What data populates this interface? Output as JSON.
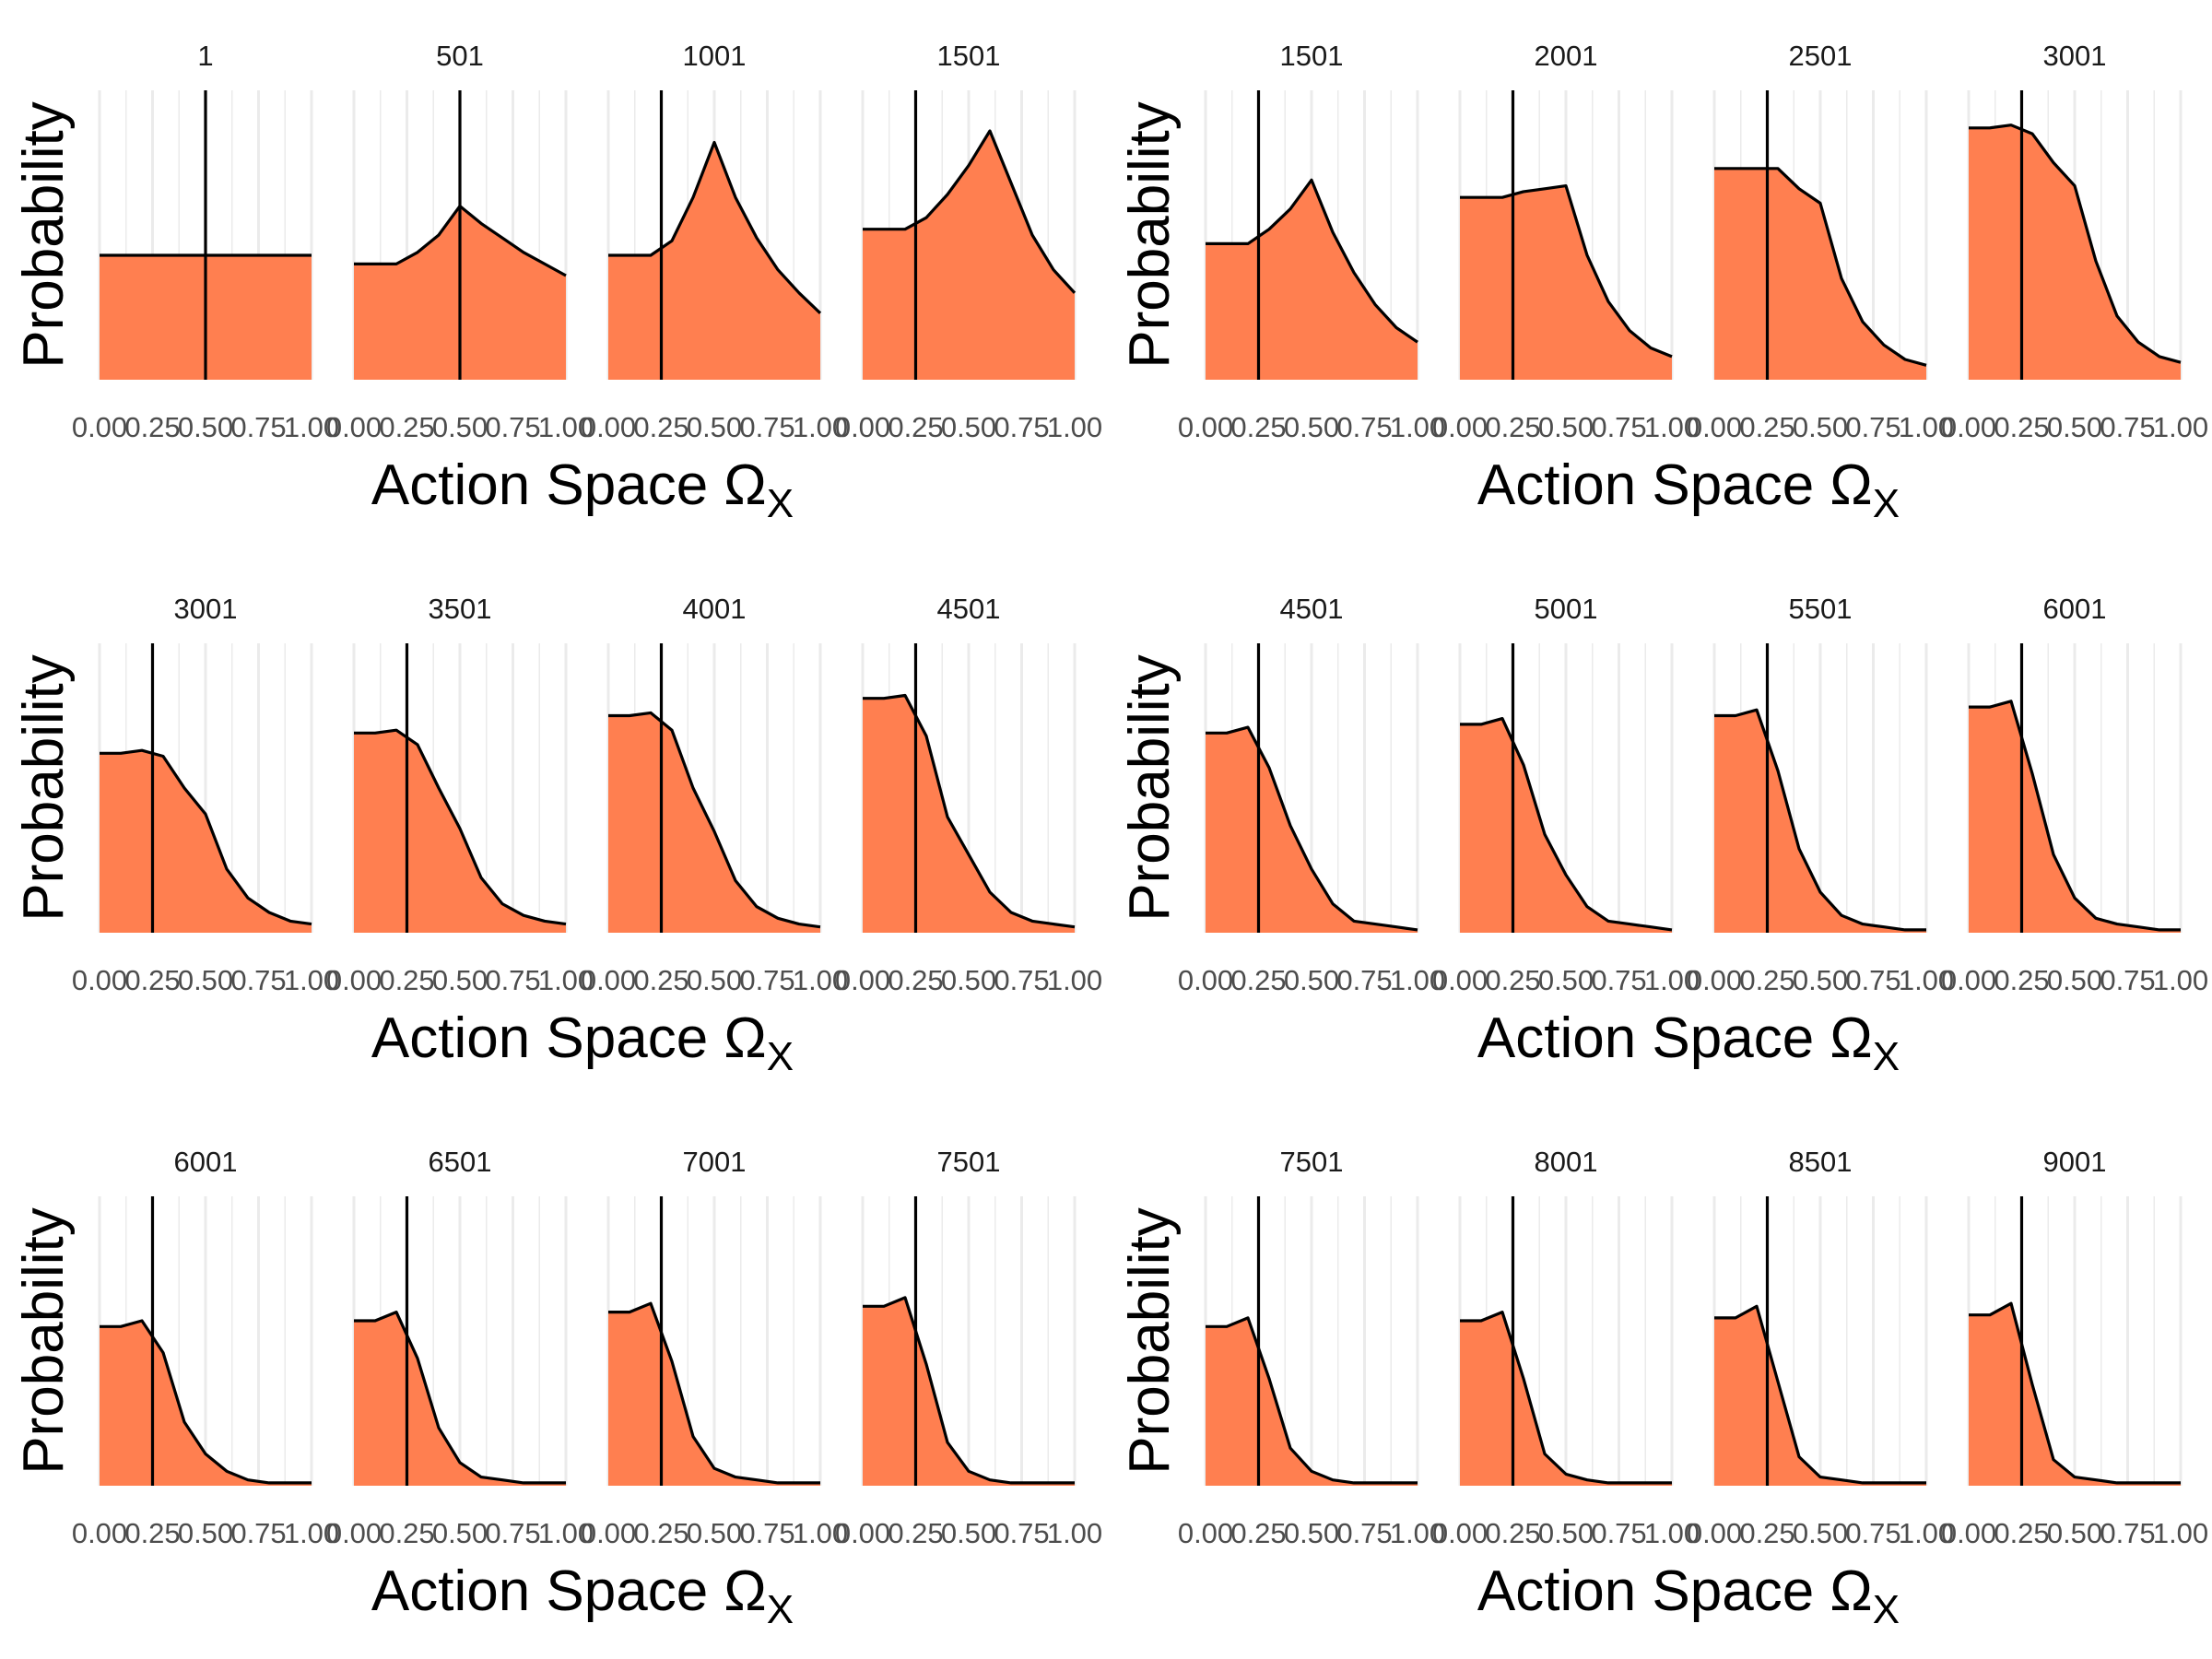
{
  "figure": {
    "fill_color": "#FF7F50",
    "line_color": "#000000",
    "grid_color": "#EBEBEB",
    "tick_label_color": "#4D4D4D",
    "ylabel": "Probability",
    "xlabel_main": "Action Space Ω",
    "xlabel_sub": "X",
    "x_tick_labels": [
      "0.00",
      "0.25",
      "0.50",
      "0.75",
      "1.00"
    ],
    "y_axis_ticks_shown": false,
    "grid": "vertical only"
  },
  "chart_data": [
    {
      "type": "area",
      "x": [
        0,
        0.1,
        0.2,
        0.3,
        0.4,
        0.5,
        0.6,
        0.7,
        0.8,
        0.9,
        1.0
      ],
      "xlim": [
        0,
        1
      ],
      "ylim": [
        0,
        1
      ],
      "facets": [
        {
          "title": "1",
          "vline": 0.5,
          "values": [
            0.43,
            0.43,
            0.43,
            0.43,
            0.43,
            0.43,
            0.43,
            0.43,
            0.43,
            0.43,
            0.43
          ]
        },
        {
          "title": "501",
          "vline": 0.5,
          "values": [
            0.4,
            0.4,
            0.4,
            0.44,
            0.5,
            0.6,
            0.54,
            0.49,
            0.44,
            0.4,
            0.36
          ]
        },
        {
          "title": "1001",
          "vline": 0.25,
          "values": [
            0.43,
            0.43,
            0.43,
            0.48,
            0.63,
            0.82,
            0.63,
            0.49,
            0.38,
            0.3,
            0.23
          ]
        },
        {
          "title": "1501",
          "vline": 0.25,
          "values": [
            0.52,
            0.52,
            0.52,
            0.56,
            0.64,
            0.74,
            0.86,
            0.68,
            0.5,
            0.38,
            0.3
          ]
        }
      ]
    },
    {
      "type": "area",
      "x": [
        0,
        0.1,
        0.2,
        0.3,
        0.4,
        0.5,
        0.6,
        0.7,
        0.8,
        0.9,
        1.0
      ],
      "xlim": [
        0,
        1
      ],
      "ylim": [
        0,
        1
      ],
      "facets": [
        {
          "title": "1501",
          "vline": 0.25,
          "values": [
            0.47,
            0.47,
            0.47,
            0.52,
            0.59,
            0.69,
            0.51,
            0.37,
            0.26,
            0.18,
            0.13
          ]
        },
        {
          "title": "2001",
          "vline": 0.25,
          "values": [
            0.63,
            0.63,
            0.63,
            0.65,
            0.66,
            0.67,
            0.43,
            0.27,
            0.17,
            0.11,
            0.08
          ]
        },
        {
          "title": "2501",
          "vline": 0.25,
          "values": [
            0.73,
            0.73,
            0.73,
            0.73,
            0.66,
            0.61,
            0.35,
            0.2,
            0.12,
            0.07,
            0.05
          ]
        },
        {
          "title": "3001",
          "vline": 0.25,
          "values": [
            0.87,
            0.87,
            0.88,
            0.85,
            0.75,
            0.67,
            0.41,
            0.22,
            0.13,
            0.08,
            0.06
          ]
        }
      ]
    },
    {
      "type": "area",
      "x": [
        0,
        0.1,
        0.2,
        0.3,
        0.4,
        0.5,
        0.6,
        0.7,
        0.8,
        0.9,
        1.0
      ],
      "xlim": [
        0,
        1
      ],
      "ylim": [
        0,
        1
      ],
      "facets": [
        {
          "title": "3001",
          "vline": 0.25,
          "values": [
            0.62,
            0.62,
            0.63,
            0.61,
            0.5,
            0.41,
            0.22,
            0.12,
            0.07,
            0.04,
            0.03
          ]
        },
        {
          "title": "3501",
          "vline": 0.25,
          "values": [
            0.69,
            0.69,
            0.7,
            0.65,
            0.5,
            0.36,
            0.19,
            0.1,
            0.06,
            0.04,
            0.03
          ]
        },
        {
          "title": "4001",
          "vline": 0.25,
          "values": [
            0.75,
            0.75,
            0.76,
            0.7,
            0.5,
            0.35,
            0.18,
            0.09,
            0.05,
            0.03,
            0.02
          ]
        },
        {
          "title": "4501",
          "vline": 0.25,
          "values": [
            0.81,
            0.81,
            0.82,
            0.68,
            0.4,
            0.27,
            0.14,
            0.07,
            0.04,
            0.03,
            0.02
          ]
        }
      ]
    },
    {
      "type": "area",
      "x": [
        0,
        0.1,
        0.2,
        0.3,
        0.4,
        0.5,
        0.6,
        0.7,
        0.8,
        0.9,
        1.0
      ],
      "xlim": [
        0,
        1
      ],
      "ylim": [
        0,
        1
      ],
      "facets": [
        {
          "title": "4501",
          "vline": 0.25,
          "values": [
            0.69,
            0.69,
            0.71,
            0.57,
            0.37,
            0.22,
            0.1,
            0.04,
            0.03,
            0.02,
            0.01
          ]
        },
        {
          "title": "5001",
          "vline": 0.25,
          "values": [
            0.72,
            0.72,
            0.74,
            0.58,
            0.34,
            0.2,
            0.09,
            0.04,
            0.03,
            0.02,
            0.01
          ]
        },
        {
          "title": "5501",
          "vline": 0.25,
          "values": [
            0.75,
            0.75,
            0.77,
            0.56,
            0.29,
            0.14,
            0.06,
            0.03,
            0.02,
            0.01,
            0.01
          ]
        },
        {
          "title": "6001",
          "vline": 0.25,
          "values": [
            0.78,
            0.78,
            0.8,
            0.55,
            0.27,
            0.12,
            0.05,
            0.03,
            0.02,
            0.01,
            0.01
          ]
        }
      ]
    },
    {
      "type": "area",
      "x": [
        0,
        0.1,
        0.2,
        0.3,
        0.4,
        0.5,
        0.6,
        0.7,
        0.8,
        0.9,
        1.0
      ],
      "xlim": [
        0,
        1
      ],
      "ylim": [
        0,
        1
      ],
      "facets": [
        {
          "title": "6001",
          "vline": 0.25,
          "values": [
            0.55,
            0.55,
            0.57,
            0.46,
            0.22,
            0.11,
            0.05,
            0.02,
            0.01,
            0.01,
            0.01
          ]
        },
        {
          "title": "6501",
          "vline": 0.25,
          "values": [
            0.57,
            0.57,
            0.6,
            0.44,
            0.2,
            0.08,
            0.03,
            0.02,
            0.01,
            0.01,
            0.01
          ]
        },
        {
          "title": "7001",
          "vline": 0.25,
          "values": [
            0.6,
            0.6,
            0.63,
            0.43,
            0.17,
            0.06,
            0.03,
            0.02,
            0.01,
            0.01,
            0.01
          ]
        },
        {
          "title": "7501",
          "vline": 0.25,
          "values": [
            0.62,
            0.62,
            0.65,
            0.42,
            0.15,
            0.05,
            0.02,
            0.01,
            0.01,
            0.01,
            0.01
          ]
        }
      ]
    },
    {
      "type": "area",
      "x": [
        0,
        0.1,
        0.2,
        0.3,
        0.4,
        0.5,
        0.6,
        0.7,
        0.8,
        0.9,
        1.0
      ],
      "xlim": [
        0,
        1
      ],
      "ylim": [
        0,
        1
      ],
      "facets": [
        {
          "title": "7501",
          "vline": 0.25,
          "values": [
            0.55,
            0.55,
            0.58,
            0.37,
            0.13,
            0.05,
            0.02,
            0.01,
            0.01,
            0.01,
            0.01
          ]
        },
        {
          "title": "8001",
          "vline": 0.25,
          "values": [
            0.57,
            0.57,
            0.6,
            0.37,
            0.11,
            0.04,
            0.02,
            0.01,
            0.01,
            0.01,
            0.01
          ]
        },
        {
          "title": "8501",
          "vline": 0.25,
          "values": [
            0.58,
            0.58,
            0.62,
            0.36,
            0.1,
            0.03,
            0.02,
            0.01,
            0.01,
            0.01,
            0.01
          ]
        },
        {
          "title": "9001",
          "vline": 0.25,
          "values": [
            0.59,
            0.59,
            0.63,
            0.35,
            0.09,
            0.03,
            0.02,
            0.01,
            0.01,
            0.01,
            0.01
          ]
        }
      ]
    }
  ]
}
